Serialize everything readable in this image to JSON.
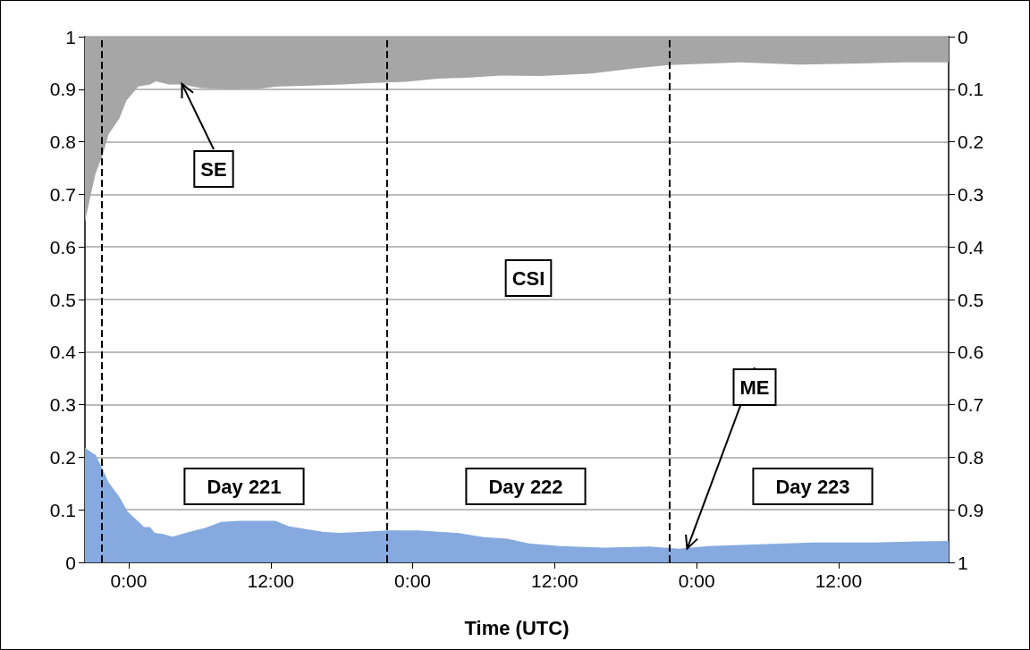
{
  "chart_data": {
    "type": "area",
    "xlabel": "Time (UTC)",
    "xlim": [
      "--08-08T20:18",
      "--08-11T21:18"
    ],
    "xticks": [
      {
        "value": "--08-09T00:00",
        "label": "0:00"
      },
      {
        "value": "--08-09T12:00",
        "label": "12:00"
      },
      {
        "value": "--08-10T00:00",
        "label": "0:00"
      },
      {
        "value": "--08-10T12:00",
        "label": "12:00"
      },
      {
        "value": "--08-11T00:00",
        "label": "0:00"
      },
      {
        "value": "--08-11T12:00",
        "label": "12:00"
      }
    ],
    "ylim": [
      0,
      1
    ],
    "yticks": [
      0,
      0.1,
      0.2,
      0.3,
      0.4,
      0.5,
      0.6,
      0.7,
      0.8,
      0.9,
      1
    ],
    "y2lim": [
      1,
      0
    ],
    "y2ticks": [
      0,
      0.1,
      0.2,
      0.3,
      0.4,
      0.5,
      0.6,
      0.7,
      0.8,
      0.9,
      1
    ],
    "grid": "y",
    "series": [
      {
        "color": "#86aadf",
        "x": [
          "--08-08T20:18",
          "--08-08T21:00",
          "--08-08T21:12",
          "--08-08T21:48",
          "--08-08T22:18",
          "--08-08T23:12",
          "--08-08T23:54",
          "--08-09T01:18",
          "--08-09T01:48",
          "--08-09T02:12",
          "--08-09T02:54",
          "--08-09T03:42",
          "--08-09T05:06",
          "--08-09T06:30",
          "--08-09T07:48",
          "--08-09T09:24",
          "--08-09T11:06",
          "--08-09T12:24",
          "--08-09T13:30",
          "--08-09T15:06",
          "--08-09T16:30",
          "--08-09T17:54",
          "--08-09T19:30",
          "--08-09T21:54",
          "--08-10T00:30",
          "--08-10T03:48",
          "--08-10T06:00",
          "--08-10T08:00",
          "--08-10T09:48",
          "--08-10T12:24",
          "--08-10T16:12",
          "--08-10T20:00",
          "--08-10T22:30",
          "--08-11T01:00",
          "--08-11T04:48",
          "--08-11T09:54",
          "--08-11T14:54",
          "--08-11T18:42",
          "--08-11T21:18"
        ],
        "values": [
          0.218,
          0.207,
          0.205,
          0.177,
          0.152,
          0.125,
          0.097,
          0.067,
          0.067,
          0.056,
          0.054,
          0.049,
          0.058,
          0.066,
          0.077,
          0.079,
          0.079,
          0.079,
          0.069,
          0.063,
          0.058,
          0.056,
          0.058,
          0.061,
          0.061,
          0.056,
          0.048,
          0.045,
          0.036,
          0.031,
          0.028,
          0.03,
          0.026,
          0.031,
          0.034,
          0.038,
          0.038,
          0.04,
          0.041
        ]
      },
      {
        "color": "#a6a6a6",
        "axis": "y2",
        "x": [
          "--08-08T20:18",
          "--08-08T20:42",
          "--08-08T21:12",
          "--08-08T21:48",
          "--08-08T22:18",
          "--08-08T23:12",
          "--08-08T23:48",
          "--08-09T00:48",
          "--08-09T01:48",
          "--08-09T02:18",
          "--08-09T03:24",
          "--08-09T04:30",
          "--08-09T06:06",
          "--08-09T08:30",
          "--08-09T11:00",
          "--08-09T12:36",
          "--08-09T15:18",
          "--08-09T18:00",
          "--08-09T20:42",
          "--08-09T23:24",
          "--08-10T02:06",
          "--08-10T04:48",
          "--08-10T07:30",
          "--08-10T10:48",
          "--08-10T15:06",
          "--08-10T18:54",
          "--08-10T21:42",
          "--08-11T03:42",
          "--08-11T08:42",
          "--08-11T13:48",
          "--08-11T17:30",
          "--08-11T21:18"
        ],
        "values": [
          0.353,
          0.31,
          0.26,
          0.225,
          0.186,
          0.156,
          0.122,
          0.095,
          0.091,
          0.085,
          0.091,
          0.091,
          0.098,
          0.1,
          0.099,
          0.095,
          0.093,
          0.091,
          0.088,
          0.086,
          0.08,
          0.078,
          0.074,
          0.075,
          0.07,
          0.06,
          0.054,
          0.049,
          0.053,
          0.051,
          0.049,
          0.049
        ]
      }
    ],
    "ref_lines": [
      {
        "axis": "x",
        "value": "--08-08T21:42",
        "color": "#000000",
        "line_style": "dashed"
      },
      {
        "axis": "x",
        "value": "--08-09T21:48",
        "color": "#000000",
        "line_style": "dashed"
      },
      {
        "axis": "x",
        "value": "--08-10T21:42",
        "color": "#000000",
        "line_style": "dashed"
      }
    ],
    "annotations": [
      {
        "text": "SE",
        "x": "--08-09T04:30",
        "y": 0.91
      },
      "CSI",
      {
        "text": "ME",
        "x": "--08-10T23:12",
        "y": 0.026
      },
      "Day 221",
      "Day 222",
      "Day 223"
    ]
  }
}
